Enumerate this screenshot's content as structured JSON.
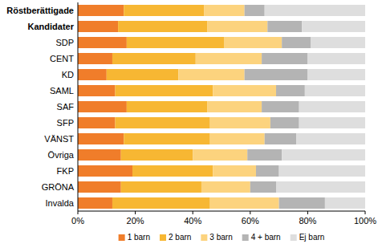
{
  "chart_data": {
    "type": "bar",
    "orientation": "horizontal",
    "stacked": true,
    "grid": false,
    "legend": "bottom",
    "categories": [
      "Röstberättigade",
      "Kandidater",
      "SDP",
      "CENT",
      "KD",
      "SAML",
      "SAF",
      "SFP",
      "VÄNST",
      "Övriga",
      "FKP",
      "GRÖNA",
      "Invalda"
    ],
    "xlim": [
      0,
      100
    ],
    "xticks": [
      {
        "value": 0,
        "label": "0%"
      },
      {
        "value": 20,
        "label": "20%"
      },
      {
        "value": 40,
        "label": "40%"
      },
      {
        "value": 60,
        "label": "60%"
      },
      {
        "value": 80,
        "label": "80%"
      },
      {
        "value": 100,
        "label": "100%"
      }
    ],
    "series": [
      {
        "name": "1 barn",
        "color": "#f07d2a",
        "values": [
          16,
          14,
          17,
          12,
          10,
          13,
          17,
          13,
          16,
          15,
          19,
          15,
          12
        ]
      },
      {
        "name": "2 barn",
        "color": "#f7b733",
        "values": [
          28,
          31,
          34,
          29,
          25,
          34,
          28,
          33,
          30,
          25,
          28,
          28,
          34
        ]
      },
      {
        "name": "3 barn",
        "color": "#fcd37e",
        "values": [
          14,
          21,
          20,
          23,
          23,
          22,
          19,
          21,
          19,
          19,
          15,
          17,
          24
        ]
      },
      {
        "name": "4 + barn",
        "color": "#b4b4b4",
        "values": [
          7,
          12,
          10,
          16,
          22,
          10,
          13,
          10,
          11,
          12,
          8,
          9,
          16
        ]
      },
      {
        "name": "Ej barn",
        "color": "#dedede",
        "values": [
          35,
          22,
          19,
          20,
          20,
          21,
          23,
          23,
          24,
          29,
          30,
          31,
          14
        ]
      }
    ]
  }
}
